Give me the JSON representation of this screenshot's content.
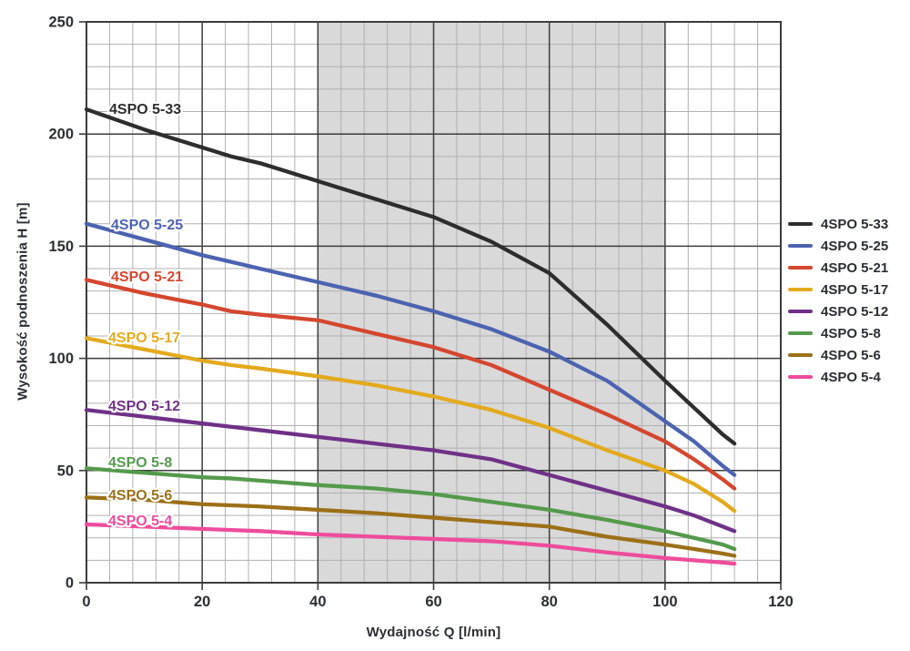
{
  "chart_data": {
    "type": "line",
    "title": "",
    "xlabel": "Wydajność Q [l/min]",
    "ylabel": "Wysokość podnoszenia H [m]",
    "xlim": [
      0,
      120
    ],
    "ylim": [
      0,
      250
    ],
    "x_ticks": [
      0,
      20,
      40,
      60,
      80,
      100,
      120
    ],
    "y_ticks": [
      0,
      50,
      100,
      150,
      200,
      250
    ],
    "x_minor_step": 4,
    "y_minor_step": 10,
    "grid": "major+minor",
    "legend_position": "right-outside",
    "shaded_band_x": [
      40,
      100
    ],
    "x": [
      0,
      10,
      20,
      25,
      30,
      40,
      50,
      60,
      70,
      80,
      90,
      100,
      105,
      110,
      112
    ],
    "series": [
      {
        "name": "4SPO 5-33",
        "color": "#2d2d2d",
        "values": [
          211,
          202,
          194,
          190,
          187,
          179,
          171,
          163,
          152,
          138,
          115,
          90,
          78,
          66,
          62
        ]
      },
      {
        "name": "4SPO 5-25",
        "color": "#4c63b0",
        "values": [
          160,
          153,
          146,
          143,
          140,
          134,
          128,
          121,
          113,
          103,
          90,
          72,
          63,
          52,
          48
        ]
      },
      {
        "name": "4SPO 5-21",
        "color": "#d5462f",
        "values": [
          135,
          129,
          124,
          121,
          119.5,
          117,
          111,
          105,
          97,
          86,
          75,
          63,
          55,
          46,
          42
        ]
      },
      {
        "name": "4SPO 5-17",
        "color": "#e3aa1d",
        "values": [
          109,
          104,
          99,
          97,
          95.5,
          92,
          88,
          83,
          77,
          69,
          59,
          50,
          44,
          36,
          32
        ]
      },
      {
        "name": "4SPO 5-12",
        "color": "#6f3187",
        "values": [
          77,
          74,
          71,
          69.5,
          68,
          65,
          62,
          59,
          55,
          48,
          41,
          34,
          30,
          25,
          23
        ]
      },
      {
        "name": "4SPO 5-8",
        "color": "#549a4c",
        "values": [
          51,
          49,
          47,
          46.5,
          45.5,
          43.5,
          42,
          39.5,
          36,
          32.5,
          28,
          23,
          20,
          17,
          15
        ]
      },
      {
        "name": "4SPO 5-6",
        "color": "#9c7018",
        "values": [
          38,
          37,
          35,
          34.5,
          34,
          32.5,
          31,
          29,
          27,
          25,
          20.5,
          17,
          15,
          13,
          12
        ]
      },
      {
        "name": "4SPO 5-4",
        "color": "#ee4c9c",
        "values": [
          26,
          25,
          24,
          23.5,
          23,
          21.5,
          20.5,
          19.5,
          18.5,
          16.5,
          13.5,
          11,
          10,
          9,
          8.5
        ]
      }
    ]
  },
  "colors": {
    "background": "#ffffff",
    "shaded_band": "#d9d9d9",
    "grid_minor": "#b0b0b0",
    "grid_major": "#3c3c3c",
    "text": "#2b2e34"
  }
}
